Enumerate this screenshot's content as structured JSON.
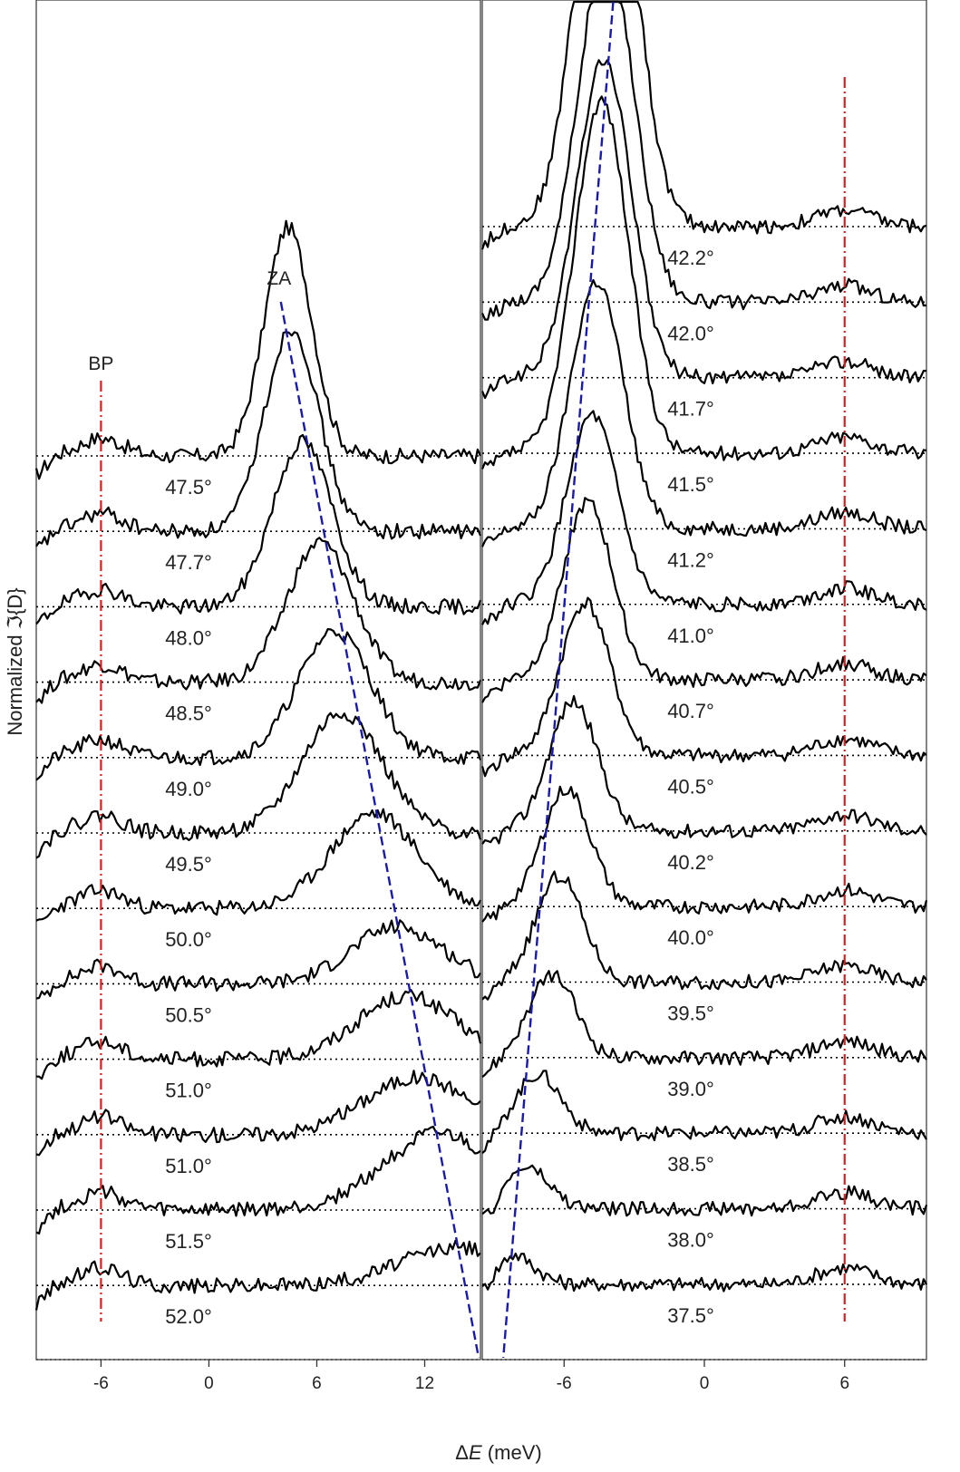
{
  "chart_data": {
    "type": "line",
    "xlabel_prefix": "Δ",
    "xlabel_var": "E",
    "xlabel_unit": " (meV)",
    "ylabel": "Normalized ℑ{D}",
    "panels": [
      {
        "id": "left",
        "xticks": [
          "-6",
          "0",
          "6",
          "12"
        ],
        "xtick_values": [
          -6,
          0,
          6,
          12
        ],
        "xlim": [
          -9.6,
          15.1
        ],
        "angles": [
          "47.5°",
          "47.7°",
          "48.0°",
          "48.5°",
          "49.0°",
          "49.5°",
          "50.0°",
          "50.5°",
          "51.0°",
          "51.0°",
          "51.5°",
          "52.0°"
        ],
        "za_peak_meV": [
          4.4,
          4.6,
          5.2,
          6.2,
          7.0,
          7.4,
          9.2,
          10.5,
          11.0,
          11.6,
          12.8,
          13.9
        ],
        "za_peak_height": [
          1.8,
          1.6,
          1.3,
          1.1,
          1.0,
          0.95,
          0.75,
          0.45,
          0.5,
          0.45,
          0.6,
          0.3
        ],
        "za_line": {
          "label": "ZA",
          "start_meV": 4.0,
          "end_meV": 15.0
        },
        "bp_line": {
          "label": "BP",
          "meV": -6.0
        }
      },
      {
        "id": "right",
        "xticks": [
          "-6",
          "0",
          "6"
        ],
        "xtick_values": [
          -6,
          0,
          6
        ],
        "xlim": [
          -9.5,
          9.5
        ],
        "angles": [
          "42.2°",
          "42.0°",
          "41.7°",
          "41.5°",
          "41.2°",
          "41.0°",
          "40.7°",
          "40.5°",
          "40.2°",
          "40.0°",
          "39.5°",
          "39.0°",
          "38.5°",
          "38.0°",
          "37.5°"
        ],
        "za_peak_meV": [
          -4.2,
          -4.2,
          -4.3,
          -4.4,
          -4.6,
          -4.8,
          -5.0,
          -5.1,
          -5.6,
          -5.9,
          -6.2,
          -6.5,
          -7.1,
          -7.6,
          -8.2
        ],
        "za_peak_height": [
          4.0,
          3.0,
          2.7,
          3.0,
          2.1,
          1.6,
          1.5,
          1.3,
          1.1,
          1.0,
          0.9,
          0.7,
          0.5,
          0.35,
          0.25
        ],
        "za_line": {
          "start_meV": -3.9,
          "end_meV": -8.6
        },
        "bp_line": {
          "meV": 6.0
        }
      }
    ],
    "colors": {
      "curve": "#000000",
      "za_line": "#1a1aaa",
      "bp_line": "#d42020",
      "baseline": "#000000"
    }
  }
}
